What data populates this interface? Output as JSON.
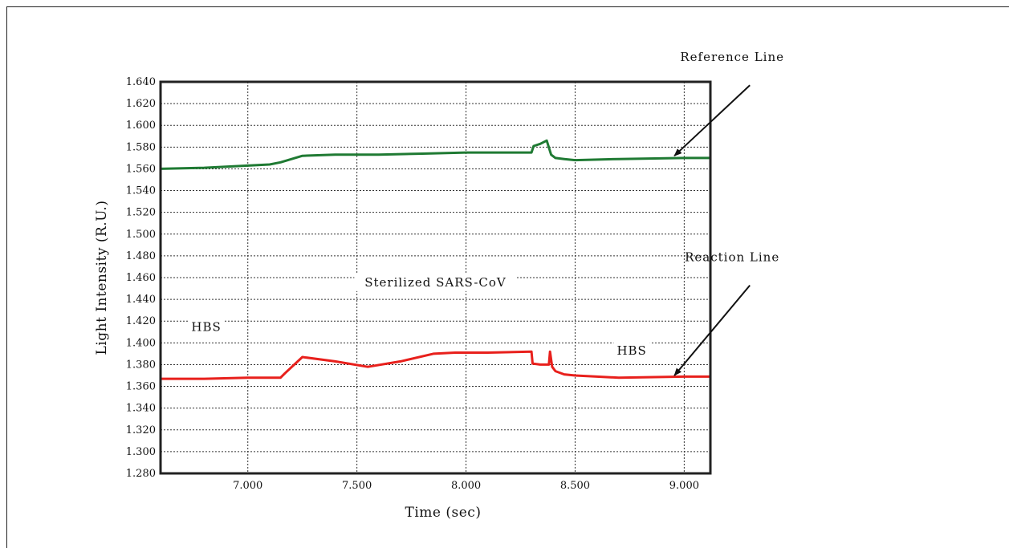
{
  "chart_data": {
    "type": "line",
    "xlabel": "Time (sec)",
    "ylabel": "Light Intensity (R.U.)",
    "xlim": [
      6600,
      9120
    ],
    "ylim": [
      1.28,
      1.64
    ],
    "xticks": [
      7000,
      7500,
      8000,
      8500,
      9000
    ],
    "xtick_labels": [
      "7.000",
      "7.500",
      "8.000",
      "8.500",
      "9.000"
    ],
    "yticks": [
      1.28,
      1.3,
      1.32,
      1.34,
      1.36,
      1.38,
      1.4,
      1.42,
      1.44,
      1.46,
      1.48,
      1.5,
      1.52,
      1.54,
      1.56,
      1.58,
      1.6,
      1.62,
      1.64
    ],
    "ytick_labels": [
      "1.280",
      "1.300",
      "1.320",
      "1.340",
      "1.360",
      "1.380",
      "1.400",
      "1.420",
      "1.440",
      "1.460",
      "1.480",
      "1.500",
      "1.520",
      "1.540",
      "1.560",
      "1.580",
      "1.600",
      "1.620",
      "1.640"
    ],
    "grid": true,
    "series": [
      {
        "name": "Reference Line",
        "color": "#1f7a33",
        "x": [
          6600,
          6800,
          7000,
          7100,
          7150,
          7250,
          7400,
          7600,
          7800,
          8000,
          8200,
          8300,
          8310,
          8340,
          8370,
          8390,
          8410,
          8450,
          8500,
          8700,
          9000,
          9120
        ],
        "y": [
          1.56,
          1.561,
          1.563,
          1.564,
          1.566,
          1.572,
          1.573,
          1.573,
          1.574,
          1.575,
          1.575,
          1.575,
          1.581,
          1.583,
          1.586,
          1.573,
          1.57,
          1.569,
          1.568,
          1.569,
          1.57,
          1.57
        ]
      },
      {
        "name": "Reaction Line",
        "color": "#e8201c",
        "x": [
          6600,
          6800,
          7000,
          7150,
          7170,
          7250,
          7400,
          7550,
          7700,
          7850,
          7950,
          8100,
          8300,
          8305,
          8340,
          8380,
          8385,
          8395,
          8410,
          8450,
          8500,
          8600,
          8700,
          9000,
          9120
        ],
        "y": [
          1.367,
          1.367,
          1.368,
          1.368,
          1.372,
          1.387,
          1.383,
          1.378,
          1.383,
          1.39,
          1.391,
          1.391,
          1.392,
          1.381,
          1.38,
          1.38,
          1.392,
          1.378,
          1.374,
          1.371,
          1.37,
          1.369,
          1.368,
          1.369,
          1.369
        ]
      }
    ],
    "annotations": [
      {
        "text": "Reference Line",
        "x": 9220,
        "y": 1.659,
        "arrow_to": [
          8955,
          1.572
        ]
      },
      {
        "text": "Reaction Line",
        "x": 9220,
        "y": 1.475,
        "arrow_to": [
          8955,
          1.37
        ]
      },
      {
        "text": "Sterilized SARS-CoV",
        "x": 7860,
        "y": 1.452
      },
      {
        "text": "HBS",
        "x": 6810,
        "y": 1.411
      },
      {
        "text": "HBS",
        "x": 8760,
        "y": 1.389
      }
    ]
  }
}
